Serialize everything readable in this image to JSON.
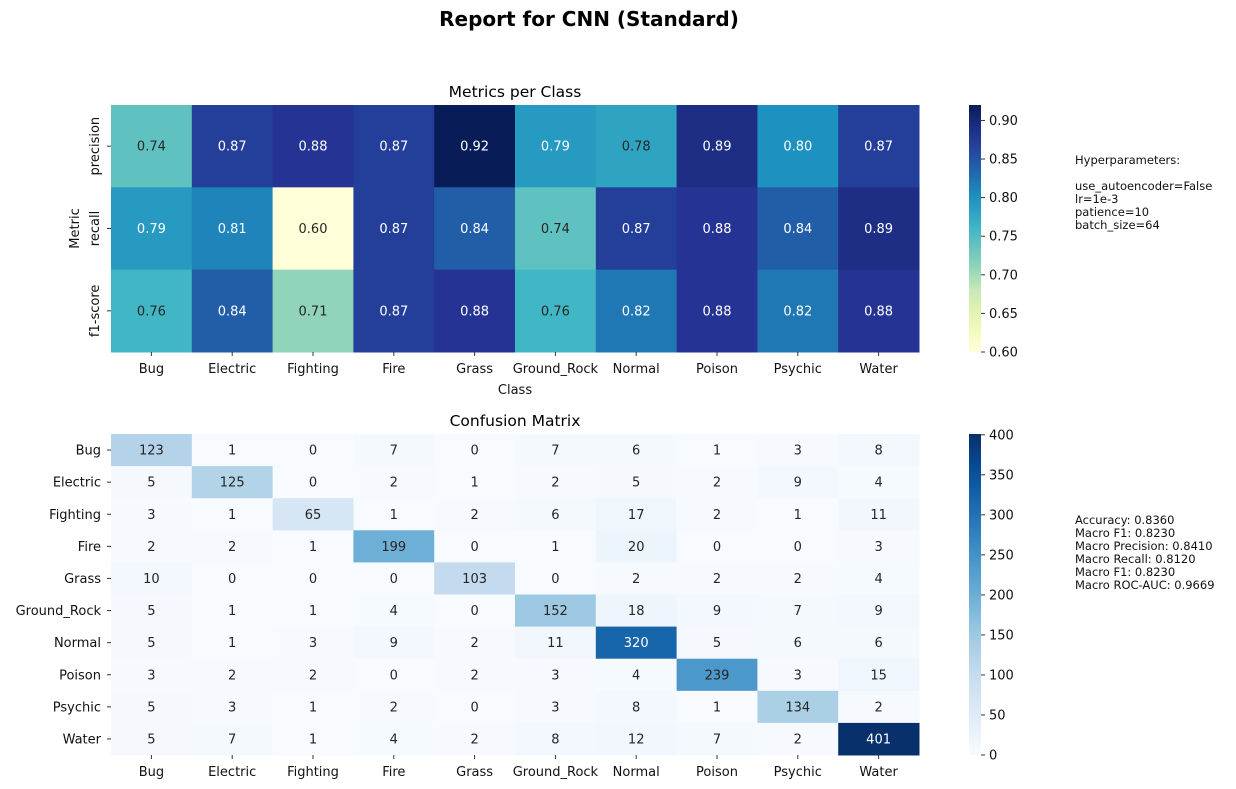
{
  "suptitle": "Report for CNN (Standard)",
  "chart_data": [
    {
      "type": "heatmap",
      "title": "Metrics per Class",
      "xlabel": "Class",
      "ylabel": "Metric",
      "x": [
        "Bug",
        "Electric",
        "Fighting",
        "Fire",
        "Grass",
        "Ground_Rock",
        "Normal",
        "Poison",
        "Psychic",
        "Water"
      ],
      "y": [
        "precision",
        "recall",
        "f1-score"
      ],
      "values": [
        [
          0.74,
          0.87,
          0.88,
          0.87,
          0.92,
          0.79,
          0.78,
          0.89,
          0.8,
          0.87
        ],
        [
          0.79,
          0.81,
          0.6,
          0.87,
          0.84,
          0.74,
          0.87,
          0.88,
          0.84,
          0.89
        ],
        [
          0.76,
          0.84,
          0.71,
          0.87,
          0.88,
          0.76,
          0.82,
          0.88,
          0.82,
          0.88
        ]
      ],
      "colormap": "YlGnBu",
      "vmin": 0.6,
      "vmax": 0.92,
      "colorbar_ticks": [
        "0.60",
        "0.65",
        "0.70",
        "0.75",
        "0.80",
        "0.85",
        "0.90"
      ]
    },
    {
      "type": "heatmap",
      "title": "Confusion Matrix",
      "xlabel": "",
      "ylabel": "",
      "x": [
        "Bug",
        "Electric",
        "Fighting",
        "Fire",
        "Grass",
        "Ground_Rock",
        "Normal",
        "Poison",
        "Psychic",
        "Water"
      ],
      "y": [
        "Bug",
        "Electric",
        "Fighting",
        "Fire",
        "Grass",
        "Ground_Rock",
        "Normal",
        "Poison",
        "Psychic",
        "Water"
      ],
      "values": [
        [
          123,
          1,
          0,
          7,
          0,
          7,
          6,
          1,
          3,
          8
        ],
        [
          5,
          125,
          0,
          2,
          1,
          2,
          5,
          2,
          9,
          4
        ],
        [
          3,
          1,
          65,
          1,
          2,
          6,
          17,
          2,
          1,
          11
        ],
        [
          2,
          2,
          1,
          199,
          0,
          1,
          20,
          0,
          0,
          3
        ],
        [
          10,
          0,
          0,
          0,
          103,
          0,
          2,
          2,
          2,
          4
        ],
        [
          5,
          1,
          1,
          4,
          0,
          152,
          18,
          9,
          7,
          9
        ],
        [
          5,
          1,
          3,
          9,
          2,
          11,
          320,
          5,
          6,
          6
        ],
        [
          3,
          2,
          2,
          0,
          2,
          3,
          4,
          239,
          3,
          15
        ],
        [
          5,
          3,
          1,
          2,
          0,
          3,
          8,
          1,
          134,
          2
        ],
        [
          5,
          7,
          1,
          4,
          2,
          8,
          12,
          7,
          2,
          401
        ]
      ],
      "colormap": "Blues",
      "vmin": 0,
      "vmax": 401,
      "colorbar_ticks": [
        "0",
        "50",
        "100",
        "150",
        "200",
        "250",
        "300",
        "350",
        "400"
      ]
    }
  ],
  "hyperparameters_lines": [
    "Hyperparameters:",
    "",
    "use_autoencoder=False",
    "lr=1e-3",
    "patience=10",
    "batch_size=64"
  ],
  "metrics_lines": [
    "Accuracy: 0.8360",
    "Macro F1: 0.8230",
    "Macro Precision: 0.8410",
    "Macro Recall: 0.8120",
    "Macro F1: 0.8230",
    "Macro ROC-AUC: 0.9669"
  ]
}
